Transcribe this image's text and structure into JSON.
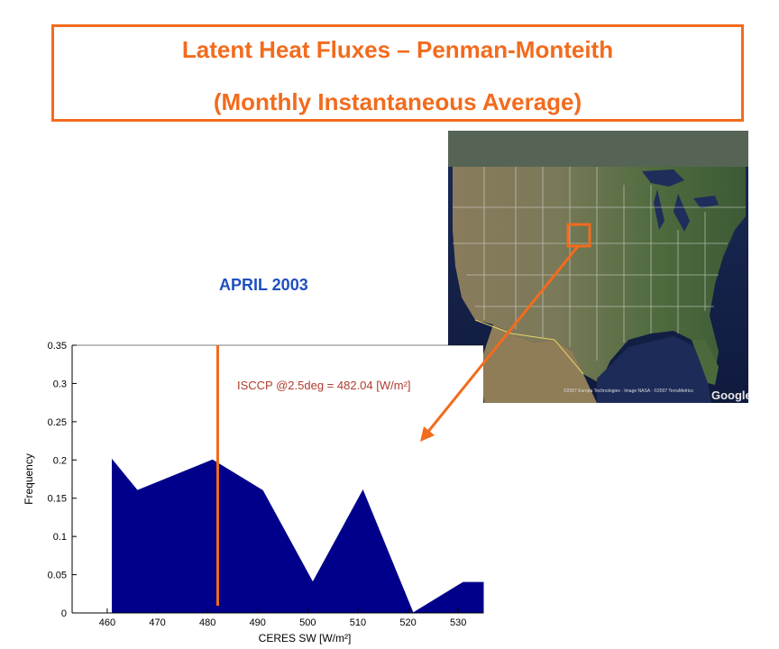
{
  "header": {
    "title_line1": "Latent Heat Fluxes – Penman-Monteith",
    "title_line2": "(Monthly Instantaneous Average)"
  },
  "date_label": "APRIL 2003",
  "map": {
    "attribution": "©2007 Europa Technologies · Image NASA · ©2007 TerraMetrics",
    "logo": "Google",
    "highlight_color": "#f26b1d"
  },
  "colors": {
    "accent": "#f26b1d",
    "fill": "#00008b",
    "annotation": "#b03a2e",
    "date_label": "#1f4fbf"
  },
  "chart_data": {
    "type": "area",
    "xlabel": "CERES SW [W/m²]",
    "ylabel": "Frequency",
    "xlim": [
      453,
      535
    ],
    "ylim": [
      0,
      0.35
    ],
    "xticks": [
      460,
      470,
      480,
      490,
      500,
      510,
      520,
      530
    ],
    "yticks": [
      0,
      0.05,
      0.1,
      0.15,
      0.2,
      0.25,
      0.3,
      0.35
    ],
    "ytick_labels": [
      "0",
      "0.05",
      "0.1",
      "0.15",
      "0.2",
      "0.25",
      "0.3",
      "0.35"
    ],
    "series": [
      {
        "x": [
          461,
          461,
          466,
          481,
          491,
          501,
          511,
          521,
          531,
          535,
          535
        ],
        "y": [
          0,
          0.2,
          0.16,
          0.2,
          0.16,
          0.04,
          0.16,
          0,
          0.04,
          0.04,
          0
        ]
      }
    ],
    "reference_line": {
      "x": 482.04,
      "label": "ISCCP @2.5deg = 482.04 [W/m²]"
    },
    "grid": false
  }
}
